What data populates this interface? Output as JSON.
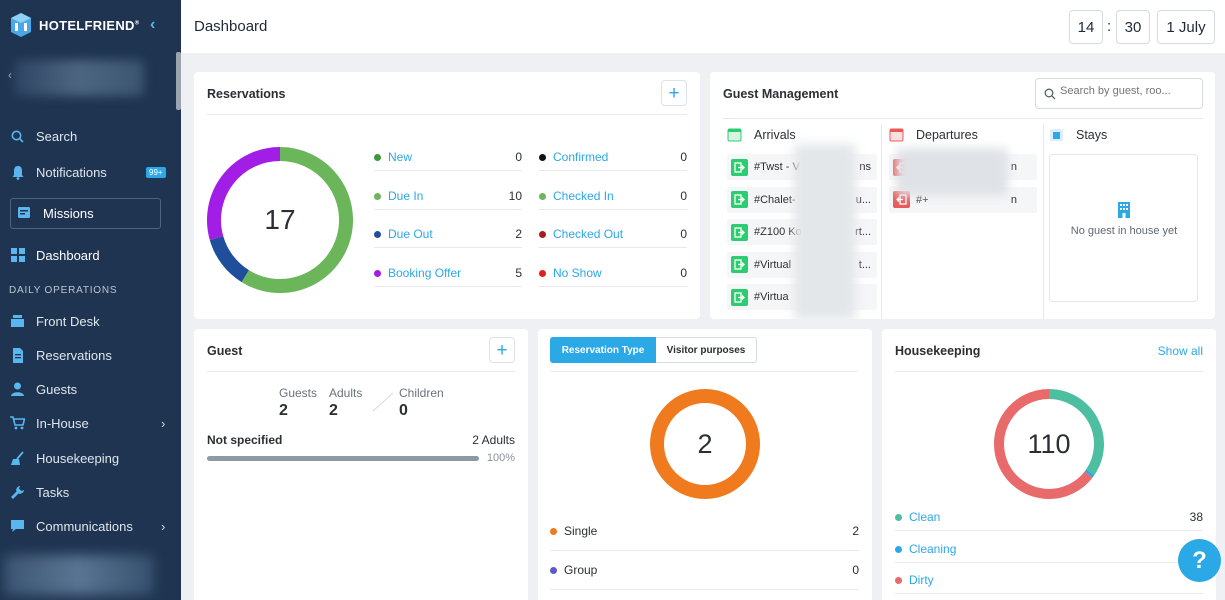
{
  "app": {
    "brand": "HOTELFRIEND",
    "brand_mark": "®"
  },
  "sidebar": {
    "search": "Search",
    "notifications": "Notifications",
    "notifications_badge": "99+",
    "missions": "Missions",
    "dashboard": "Dashboard",
    "section": "DAILY OPERATIONS",
    "items": [
      {
        "label": "Front Desk"
      },
      {
        "label": "Reservations"
      },
      {
        "label": "Guests"
      },
      {
        "label": "In-House"
      },
      {
        "label": "Housekeeping"
      },
      {
        "label": "Tasks"
      },
      {
        "label": "Communications"
      }
    ]
  },
  "header": {
    "title": "Dashboard",
    "hour": "14",
    "minute": "30",
    "colon": ":",
    "date": "1 July"
  },
  "reservations": {
    "title": "Reservations",
    "add": "+",
    "total": "17",
    "stats": [
      {
        "label": "New",
        "value": 0,
        "color": "#3a9a3a"
      },
      {
        "label": "Due In",
        "value": 10,
        "color": "#6bb55b"
      },
      {
        "label": "Due Out",
        "value": 2,
        "color": "#1f4f9a"
      },
      {
        "label": "Booking Offer",
        "value": 5,
        "color": "#a21ee6"
      },
      {
        "label": "Confirmed",
        "value": 0,
        "color": "#111111"
      },
      {
        "label": "Checked In",
        "value": 0,
        "color": "#6bb55b"
      },
      {
        "label": "Checked Out",
        "value": 0,
        "color": "#a31e1e"
      },
      {
        "label": "No Show",
        "value": 0,
        "color": "#e02020"
      }
    ]
  },
  "guest_mgmt": {
    "title": "Guest Management",
    "search_placeholder": "Search by guest, roo...",
    "arrivals": "Arrivals",
    "departures": "Departures",
    "stays": "Stays",
    "arrival_items": [
      "#Twst - V",
      "#Chalet-",
      "#Z100 Ko",
      "#Virtual",
      "#Virtua"
    ],
    "arrival_tails": [
      "ns",
      "u...",
      "rt...",
      "t...",
      ""
    ],
    "departure_tails": [
      "n",
      "n"
    ],
    "departure_heads": [
      "",
      "#+"
    ],
    "stays_empty": "No guest in house yet"
  },
  "guest": {
    "title": "Guest",
    "add": "+",
    "guests_label": "Guests",
    "guests_value": "2",
    "adults_label": "Adults",
    "adults_value": "2",
    "children_label": "Children",
    "children_value": "0",
    "row_label": "Not specified",
    "row_value": "2 Adults",
    "row_percent": "100%",
    "row_fraction": 1.0
  },
  "res_type": {
    "tabs": [
      "Reservation Type",
      "Visitor purposes"
    ],
    "total": "2",
    "items": [
      {
        "label": "Single",
        "value": 2,
        "color": "#f07a1e"
      },
      {
        "label": "Group",
        "value": 0,
        "color": "#5a5ac8"
      }
    ]
  },
  "housekeeping": {
    "title": "Housekeeping",
    "show_all": "Show all",
    "total": "110",
    "items": [
      {
        "label": "Clean",
        "value": 38,
        "display": "38",
        "color": "#4dbfa0"
      },
      {
        "label": "Cleaning",
        "value": 1,
        "display": "",
        "color": "#2ba8e6"
      },
      {
        "label": "Dirty",
        "value": 71,
        "display": "",
        "color": "#e86a6a"
      }
    ],
    "help": "?"
  }
}
